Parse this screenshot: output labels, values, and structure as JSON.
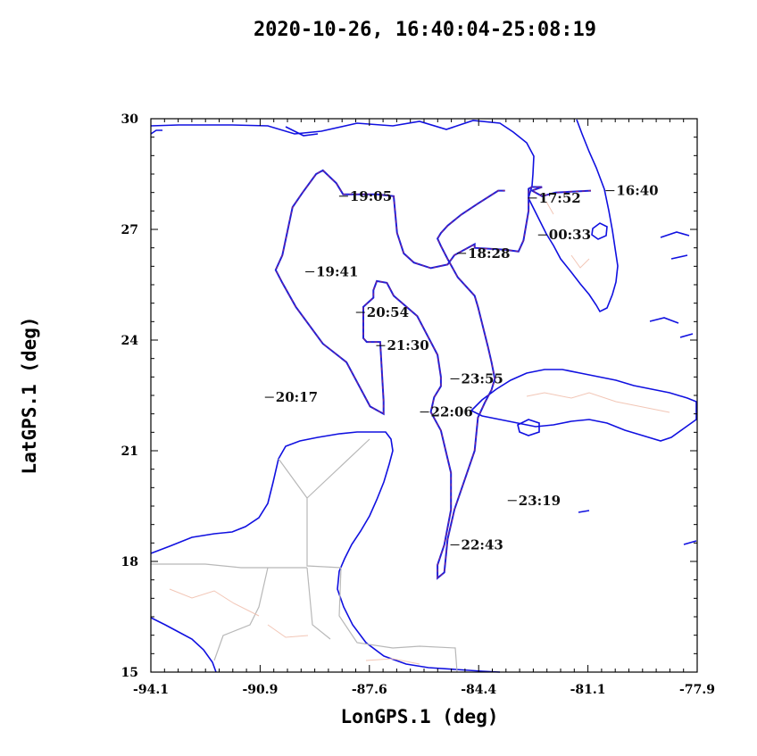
{
  "chart_data": {
    "type": "line",
    "title": "2020-10-26, 16:40:04-25:08:19",
    "xlabel": "LonGPS.1 (deg)",
    "ylabel": "LatGPS.1 (deg)",
    "xlim": [
      -94.1,
      -77.9
    ],
    "ylim": [
      15,
      30
    ],
    "x_ticks": [
      "-94.1",
      "-90.9",
      "-87.6",
      "-84.4",
      "-81.1",
      "-77.9"
    ],
    "y_ticks": [
      "15",
      "18",
      "21",
      "24",
      "27",
      "30"
    ],
    "grid": false,
    "series": [
      {
        "x": [
          -81.05,
          -82.1,
          -82.5,
          -82.8,
          -82.5,
          -82.8,
          -82.9,
          -82.9,
          -83.05,
          -83.2,
          -83.6,
          -84.5,
          -84.5,
          -85.1,
          -85.3,
          -85.8,
          -86.3,
          -86.6,
          -86.8,
          -86.9,
          -87.4,
          -88.4,
          -88.6,
          -89.0,
          -89.2,
          -89.6,
          -89.9,
          -90.2,
          -90.4,
          -90.2,
          -89.8,
          -89.0,
          -88.3,
          -87.6,
          -87.2,
          -87.2,
          -87.3,
          -87.7,
          -87.8,
          -87.8,
          -87.5,
          -87.5,
          -87.4,
          -87.1,
          -86.9,
          -86.2,
          -85.6,
          -85.5,
          -85.5,
          -85.7,
          -85.8,
          -85.5,
          -85.2,
          -85.2,
          -85.4,
          -85.6,
          -85.6,
          -85.4,
          -85.3,
          -85.1,
          -84.5,
          -84.4,
          -84.2,
          -84.0,
          -83.9,
          -84.0,
          -84.1,
          -84.4,
          -84.5,
          -84.7,
          -85.0,
          -85.3,
          -85.5,
          -85.6,
          -85.5,
          -85.3,
          -84.9,
          -84.4,
          -83.8,
          -83.7,
          -83.6
        ],
        "y": [
          28.05,
          28.0,
          27.9,
          28.05,
          28.15,
          28.15,
          28.1,
          27.5,
          26.7,
          26.4,
          26.45,
          26.5,
          26.6,
          26.3,
          26.05,
          25.95,
          26.1,
          26.35,
          26.9,
          27.9,
          27.95,
          27.95,
          28.25,
          28.6,
          28.5,
          28.0,
          27.6,
          26.3,
          25.9,
          25.55,
          24.9,
          23.9,
          23.4,
          22.2,
          22.0,
          22.35,
          23.95,
          23.95,
          24.05,
          24.9,
          25.15,
          25.35,
          25.6,
          25.55,
          25.2,
          24.65,
          23.6,
          23.0,
          22.75,
          22.45,
          22.05,
          21.55,
          20.4,
          19.4,
          18.45,
          17.9,
          17.55,
          17.7,
          18.6,
          19.4,
          21.0,
          21.9,
          22.3,
          22.65,
          22.95,
          23.4,
          23.8,
          24.9,
          25.2,
          25.4,
          25.7,
          26.2,
          26.55,
          26.75,
          26.9,
          27.1,
          27.4,
          27.7,
          28.05,
          28.05,
          28.05
        ]
      }
    ],
    "annotations": [
      {
        "text": "19:05",
        "x": -88.2,
        "y": 27.9
      },
      {
        "text": "17:52",
        "x": -82.6,
        "y": 27.85
      },
      {
        "text": "16:40",
        "x": -80.3,
        "y": 28.05
      },
      {
        "text": "00:33",
        "x": -82.3,
        "y": 26.85
      },
      {
        "text": "18:28",
        "x": -84.7,
        "y": 26.35
      },
      {
        "text": "19:41",
        "x": -89.2,
        "y": 25.85
      },
      {
        "text": "20:54",
        "x": -87.7,
        "y": 24.75
      },
      {
        "text": "21:30",
        "x": -87.1,
        "y": 23.85
      },
      {
        "text": "20:17",
        "x": -90.4,
        "y": 22.45
      },
      {
        "text": "23:55",
        "x": -84.9,
        "y": 22.95
      },
      {
        "text": "22:06",
        "x": -85.8,
        "y": 22.05
      },
      {
        "text": "23:19",
        "x": -83.2,
        "y": 19.65
      },
      {
        "text": "22:43",
        "x": -84.9,
        "y": 18.45
      }
    ]
  }
}
